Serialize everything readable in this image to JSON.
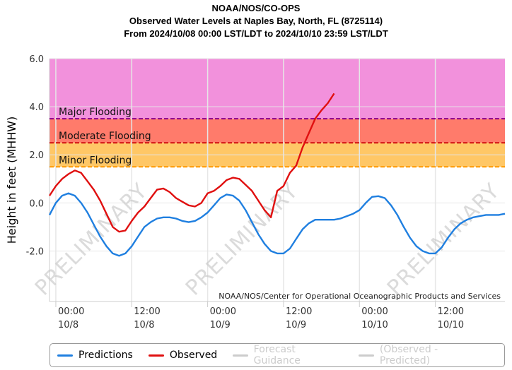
{
  "title_lines": [
    "NOAA/NOS/CO-OPS",
    "Observed Water Levels at Naples Bay, North, FL (8725114)",
    "From 2024/10/08 00:00 LST/LDT to 2024/10/10 23:59 LST/LDT"
  ],
  "credit": "NOAA/NOS/Center for Operational Oceanographic Products and Services",
  "watermark": "PRELIMINARY",
  "legend": [
    {
      "label": "Predictions",
      "color": "#1f7fe0",
      "enabled": true
    },
    {
      "label": "Observed",
      "color": "#e01010",
      "enabled": true
    },
    {
      "label": "Forecast Guidance",
      "color": "#cccccc",
      "enabled": false
    },
    {
      "label": "(Observed - Predicted)",
      "color": "#cccccc",
      "enabled": false
    }
  ],
  "chart_data": {
    "type": "line",
    "ylabel": "Height in feet (MHHW)",
    "ylim": [
      -4.1,
      6.0
    ],
    "xlim": [
      -1,
      71
    ],
    "yticks": [
      {
        "value": 6.0,
        "label": "6.0"
      },
      {
        "value": 4.0,
        "label": "4.0"
      },
      {
        "value": 2.0,
        "label": "2.0"
      },
      {
        "value": 0.0,
        "label": "0.0"
      },
      {
        "value": -2.0,
        "label": "-2.0"
      }
    ],
    "xticks": [
      {
        "value": 0,
        "label1": "00:00",
        "label2": "10/8"
      },
      {
        "value": 12,
        "label1": "12:00",
        "label2": "10/8"
      },
      {
        "value": 24,
        "label1": "00:00",
        "label2": "10/9"
      },
      {
        "value": 36,
        "label1": "12:00",
        "label2": "10/9"
      },
      {
        "value": 48,
        "label1": "00:00",
        "label2": "10/10"
      },
      {
        "value": 60,
        "label1": "12:00",
        "label2": "10/10"
      }
    ],
    "x_units": "hours since 2024/10/08 00:00 LST/LDT",
    "thresholds": [
      {
        "name": "Major Flooding",
        "value": 3.5,
        "line_color": "#8b008b",
        "fill": "#f291dc"
      },
      {
        "name": "Moderate Flooding",
        "value": 2.5,
        "line_color": "#d01010",
        "fill": "#ff7b6b"
      },
      {
        "name": "Minor Flooding",
        "value": 1.5,
        "line_color": "#ff9900",
        "fill": "#ffc766"
      }
    ],
    "series": [
      {
        "name": "Predictions",
        "color": "#1f7fe0",
        "x": [
          -1,
          0,
          1,
          2,
          3,
          4,
          5,
          6,
          7,
          8,
          9,
          10,
          11,
          12,
          13,
          14,
          15,
          16,
          17,
          18,
          19,
          20,
          21,
          22,
          23,
          24,
          25,
          26,
          27,
          28,
          29,
          30,
          31,
          32,
          33,
          34,
          35,
          36,
          37,
          38,
          39,
          40,
          41,
          42,
          43,
          44,
          45,
          46,
          47,
          48,
          49,
          50,
          51,
          52,
          53,
          54,
          55,
          56,
          57,
          58,
          59,
          60,
          61,
          62,
          63,
          64,
          65,
          66,
          67,
          68,
          69,
          70,
          71
        ],
        "y": [
          -0.5,
          0.0,
          0.3,
          0.4,
          0.3,
          0.0,
          -0.4,
          -0.9,
          -1.4,
          -1.8,
          -2.1,
          -2.2,
          -2.1,
          -1.8,
          -1.4,
          -1.0,
          -0.8,
          -0.65,
          -0.6,
          -0.6,
          -0.65,
          -0.75,
          -0.8,
          -0.75,
          -0.6,
          -0.4,
          -0.1,
          0.2,
          0.35,
          0.3,
          0.1,
          -0.3,
          -0.8,
          -1.3,
          -1.7,
          -2.0,
          -2.1,
          -2.1,
          -1.9,
          -1.5,
          -1.1,
          -0.85,
          -0.7,
          -0.7,
          -0.7,
          -0.7,
          -0.65,
          -0.55,
          -0.45,
          -0.3,
          0.0,
          0.25,
          0.28,
          0.2,
          -0.1,
          -0.5,
          -1.0,
          -1.45,
          -1.8,
          -2.0,
          -2.1,
          -2.1,
          -1.85,
          -1.45,
          -1.1,
          -0.85,
          -0.7,
          -0.6,
          -0.55,
          -0.5,
          -0.5,
          -0.5,
          -0.45
        ]
      },
      {
        "name": "Observed",
        "color": "#e01010",
        "x": [
          -1,
          0,
          1,
          2,
          3,
          4,
          5,
          6,
          7,
          8,
          9,
          10,
          11,
          12,
          13,
          14,
          15,
          16,
          17,
          18,
          19,
          20,
          21,
          22,
          23,
          24,
          25,
          26,
          27,
          28,
          29,
          30,
          31,
          32,
          33,
          34,
          35,
          36,
          37,
          38,
          39,
          40,
          41,
          42,
          43,
          44
        ],
        "y": [
          0.3,
          0.7,
          1.0,
          1.2,
          1.35,
          1.25,
          0.9,
          0.55,
          0.1,
          -0.45,
          -1.0,
          -1.2,
          -1.15,
          -0.75,
          -0.4,
          -0.15,
          0.2,
          0.55,
          0.6,
          0.45,
          0.2,
          0.05,
          -0.1,
          -0.15,
          0.0,
          0.4,
          0.5,
          0.7,
          0.95,
          1.05,
          1.0,
          0.75,
          0.5,
          0.1,
          -0.3,
          -0.6,
          0.5,
          0.7,
          1.25,
          1.55,
          2.3,
          2.9,
          3.5,
          3.85,
          4.15,
          4.55
        ]
      }
    ],
    "legend_position": "bottom"
  }
}
